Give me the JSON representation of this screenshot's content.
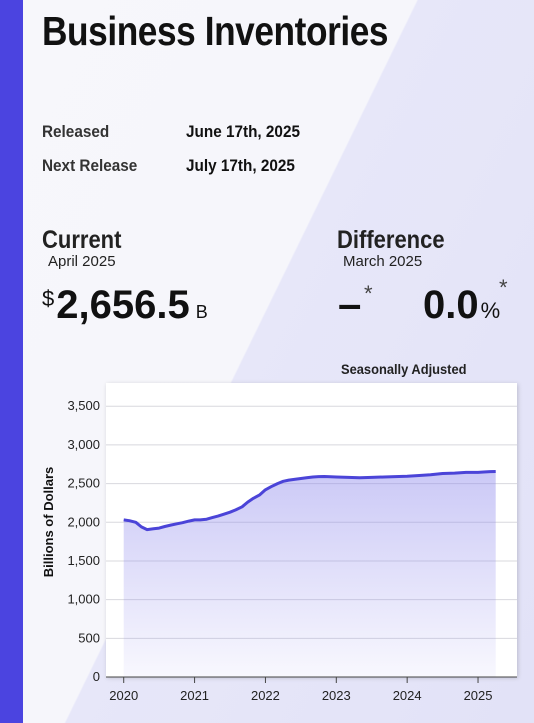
{
  "header": {
    "title": "Business Inventories"
  },
  "release": {
    "released_label": "Released",
    "released_value": "June 17th, 2025",
    "next_label": "Next Release",
    "next_value": "July 17th, 2025"
  },
  "current": {
    "heading": "Current",
    "period": "April 2025",
    "currency": "$",
    "value": "2,656.5",
    "unit": "B"
  },
  "difference": {
    "heading": "Difference",
    "period": "March 2025",
    "abs_value": "–",
    "abs_note": "*",
    "pct_value": "0.0",
    "pct_sign": "%",
    "pct_note": "*"
  },
  "colors": {
    "accent": "#4b44e0",
    "line": "#4b44d8",
    "fill": "#8c87ec"
  },
  "chart_data": {
    "type": "area",
    "title": "Seasonally Adjusted",
    "ylabel": "Billions of Dollars",
    "xlabel": "",
    "ylim": [
      0,
      3800
    ],
    "xlim": [
      2019.75,
      2025.55
    ],
    "yticks": [
      0,
      500,
      1000,
      1500,
      2000,
      2500,
      3000,
      3500
    ],
    "ytick_labels": [
      "0",
      "500",
      "1,000",
      "1,500",
      "2,000",
      "2,500",
      "3,000",
      "3,500"
    ],
    "xticks": [
      2020,
      2021,
      2022,
      2023,
      2024,
      2025
    ],
    "xtick_labels": [
      "2020",
      "2021",
      "2022",
      "2023",
      "2024",
      "2025"
    ],
    "grid": true,
    "series": [
      {
        "x": [
          2020.0,
          2020.08,
          2020.17,
          2020.25,
          2020.33,
          2020.42,
          2020.5,
          2020.58,
          2020.67,
          2020.75,
          2020.83,
          2020.92,
          2021.0,
          2021.08,
          2021.17,
          2021.25,
          2021.33,
          2021.42,
          2021.5,
          2021.58,
          2021.67,
          2021.75,
          2021.83,
          2021.92,
          2022.0,
          2022.08,
          2022.17,
          2022.25,
          2022.33,
          2022.42,
          2022.5,
          2022.58,
          2022.67,
          2022.75,
          2022.83,
          2022.92,
          2023.0,
          2023.17,
          2023.33,
          2023.5,
          2023.67,
          2023.83,
          2024.0,
          2024.17,
          2024.33,
          2024.5,
          2024.67,
          2024.83,
          2025.0,
          2025.08,
          2025.17,
          2025.25
        ],
        "values": [
          2030,
          2020,
          2000,
          1940,
          1905,
          1915,
          1925,
          1945,
          1965,
          1980,
          1995,
          2015,
          2030,
          2030,
          2040,
          2060,
          2080,
          2105,
          2130,
          2160,
          2200,
          2260,
          2310,
          2355,
          2420,
          2460,
          2500,
          2530,
          2545,
          2555,
          2565,
          2575,
          2585,
          2590,
          2592,
          2588,
          2585,
          2580,
          2575,
          2580,
          2585,
          2590,
          2595,
          2605,
          2615,
          2630,
          2635,
          2645,
          2645,
          2650,
          2655,
          2656.5
        ]
      }
    ]
  }
}
